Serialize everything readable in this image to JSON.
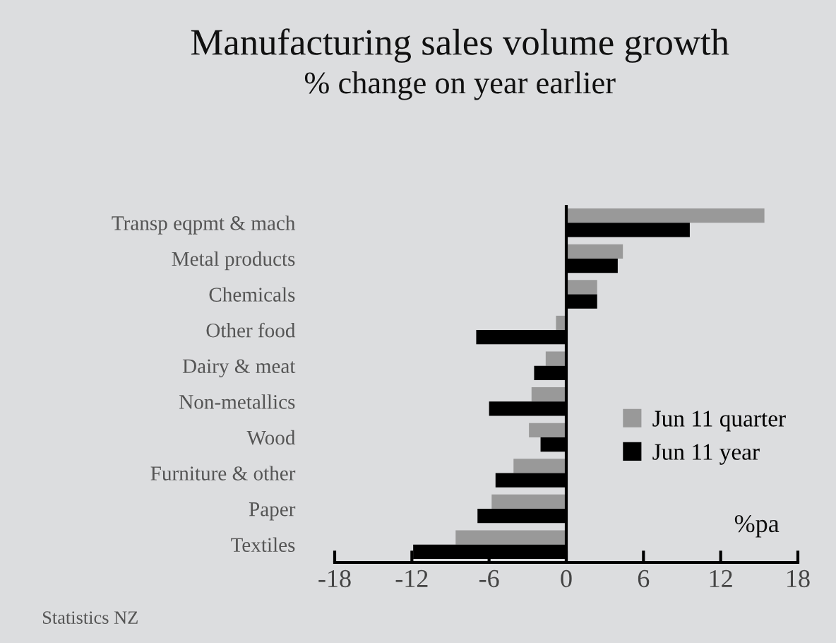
{
  "chart_data": {
    "type": "bar",
    "orientation": "horizontal",
    "title": "Manufacturing sales volume growth",
    "subtitle": "% change on year earlier",
    "categories": [
      "Transp eqpmt & mach",
      "Metal products",
      "Chemicals",
      "Other food",
      "Dairy & meat",
      "Non-metallics",
      "Wood",
      "Furniture & other",
      "Paper",
      "Textiles"
    ],
    "series": [
      {
        "name": "Jun 11 quarter",
        "color": "#999999",
        "values": [
          15.4,
          4.4,
          2.4,
          -0.8,
          -1.6,
          -2.7,
          -2.9,
          -4.1,
          -5.8,
          -8.6
        ]
      },
      {
        "name": "Jun 11 year",
        "color": "#000000",
        "values": [
          9.6,
          4.0,
          2.4,
          -7.0,
          -2.5,
          -6.0,
          -2.0,
          -5.5,
          -6.9,
          -11.9
        ]
      }
    ],
    "xlim": [
      -18,
      18
    ],
    "xticks": [
      -18,
      -12,
      -6,
      0,
      6,
      12,
      18
    ],
    "ref_lines": [
      {
        "axis": "x",
        "value": 0,
        "color": "#000000"
      }
    ],
    "annotations": [
      "%pa",
      "Statistics NZ"
    ],
    "legend": "right",
    "grid": false
  }
}
